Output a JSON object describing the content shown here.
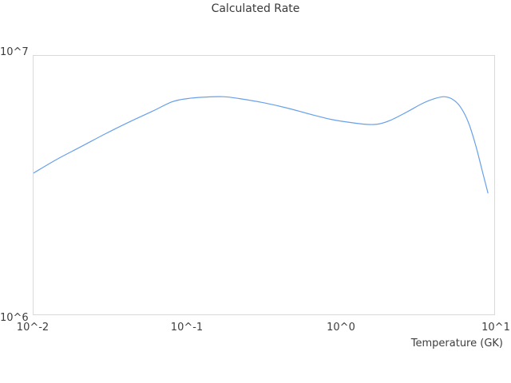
{
  "colors": {
    "line": "#68a0ea",
    "plot_border": "#d9d9d9",
    "text": "#3d3d3d",
    "background": "#ffffff"
  },
  "chart_data": {
    "type": "line",
    "title": "Calculated Rate",
    "xlabel": "Temperature (GK)",
    "ylabel": "",
    "x_scale": "log",
    "y_scale": "log",
    "xlim": [
      0.01,
      10
    ],
    "ylim": [
      1000000,
      10000000
    ],
    "x_tick_labels": [
      "10^-2",
      "10^-1",
      "10^0",
      "10^1"
    ],
    "y_tick_labels": [
      "10^6",
      "10^7"
    ],
    "grid": false,
    "legend": false,
    "line_color": "#68a0ea",
    "series": [
      {
        "name": "calculated-rate",
        "x": [
          0.01,
          0.0141,
          0.0202,
          0.0289,
          0.0414,
          0.0592,
          0.0798,
          0.1,
          0.133,
          0.173,
          0.22,
          0.314,
          0.45,
          0.643,
          0.867,
          1.17,
          1.48,
          1.77,
          2.12,
          2.69,
          3.42,
          4.09,
          4.72,
          5.38,
          6.05,
          6.82,
          7.6,
          8.36,
          9.1
        ],
        "y": [
          3520000,
          3970000,
          4440000,
          4970000,
          5530000,
          6100000,
          6640000,
          6830000,
          6930000,
          6950000,
          6830000,
          6590000,
          6280000,
          5930000,
          5680000,
          5520000,
          5430000,
          5450000,
          5640000,
          6060000,
          6550000,
          6830000,
          6950000,
          6780000,
          6320000,
          5490000,
          4470000,
          3590000,
          2950000
        ]
      }
    ]
  }
}
